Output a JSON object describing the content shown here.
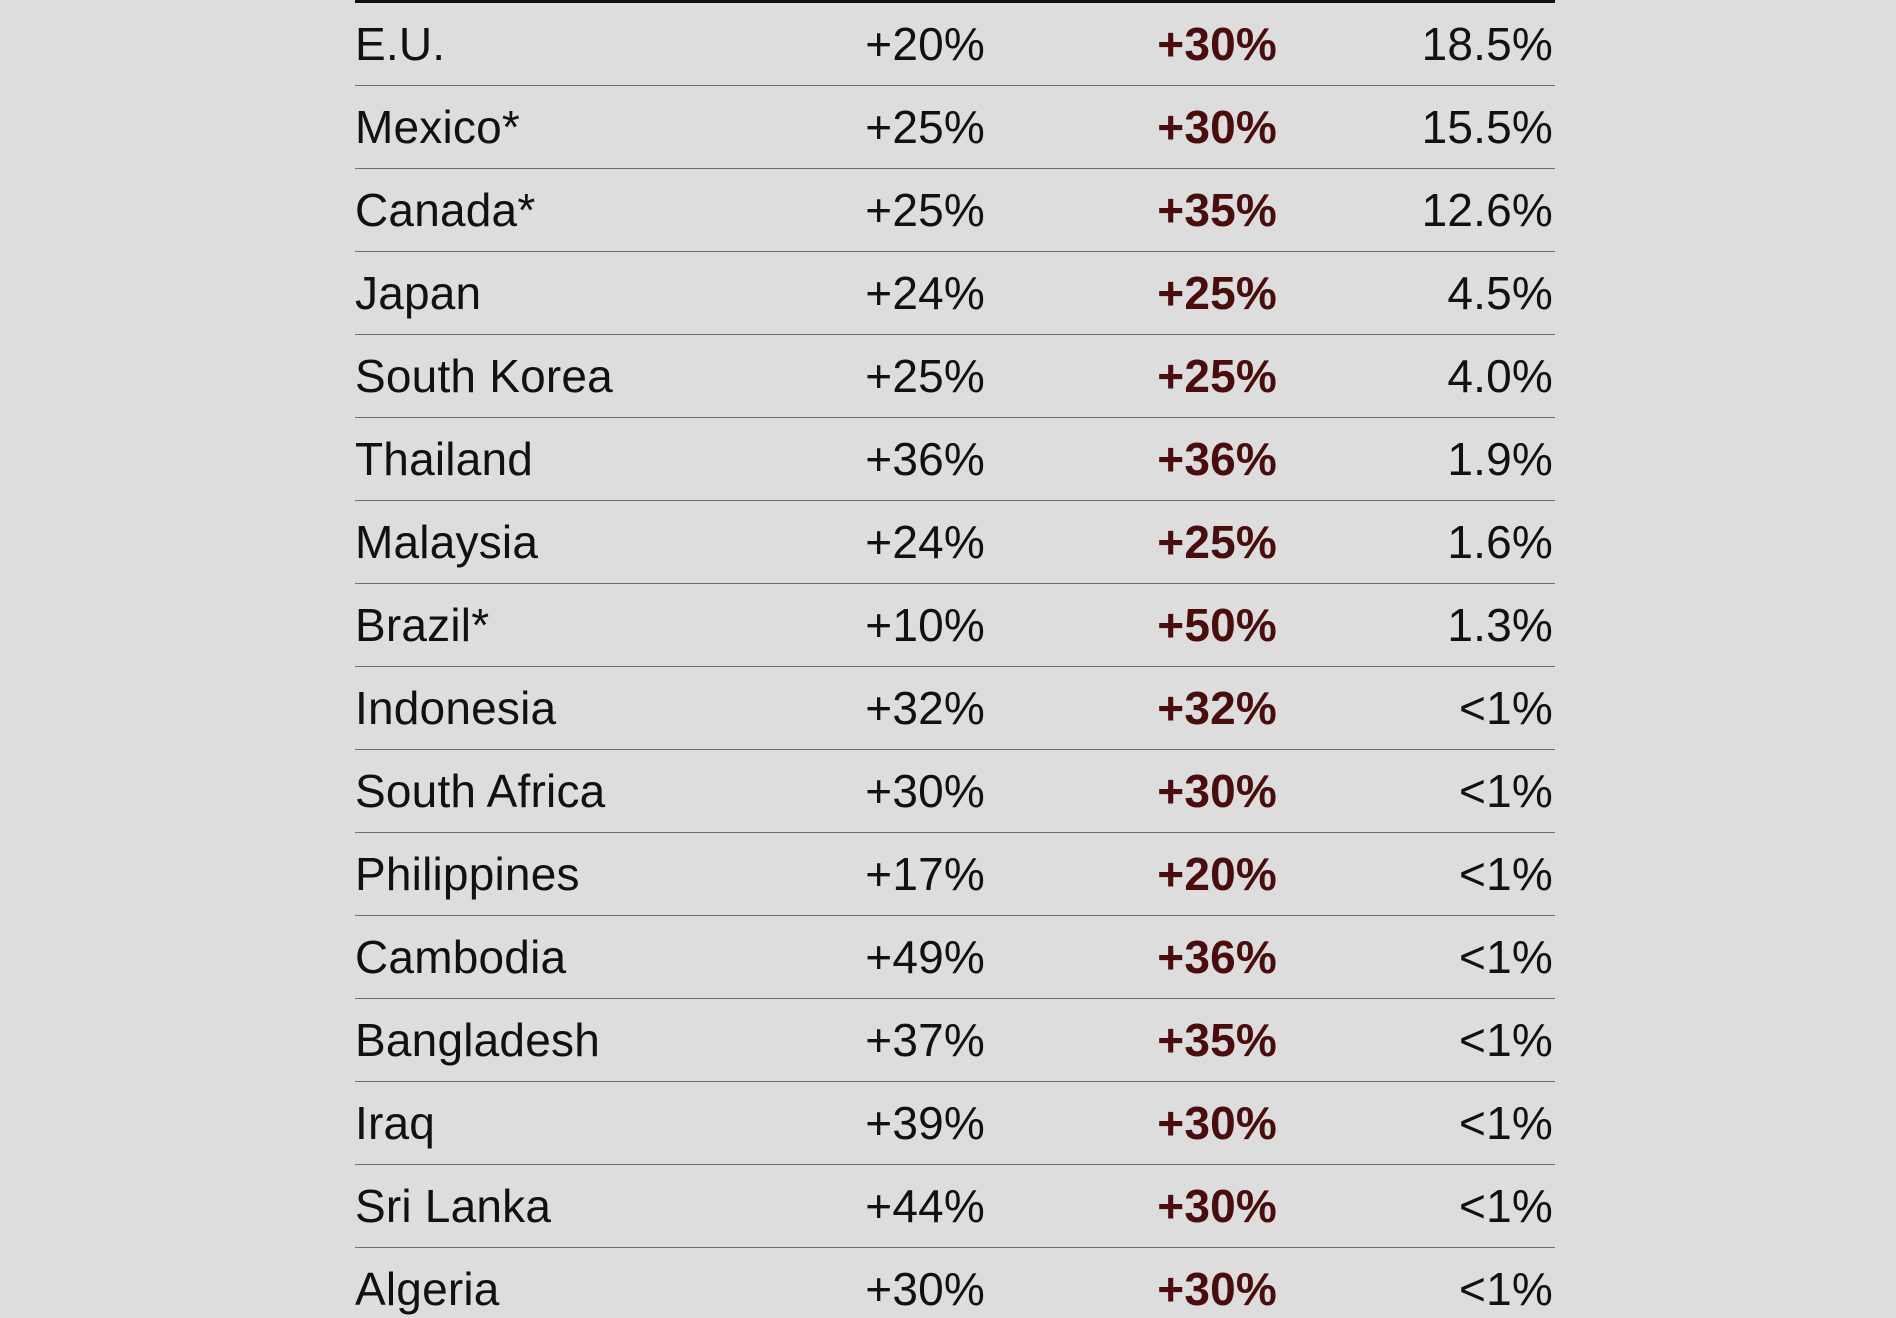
{
  "chart_data": {
    "type": "table",
    "columns": [
      "",
      "",
      "",
      ""
    ],
    "rows": [
      {
        "country": "E.U.",
        "col1": "+20%",
        "col2": "+30%",
        "col3": "18.5%"
      },
      {
        "country": "Mexico*",
        "col1": "+25%",
        "col2": "+30%",
        "col3": "15.5%"
      },
      {
        "country": "Canada*",
        "col1": "+25%",
        "col2": "+35%",
        "col3": "12.6%"
      },
      {
        "country": "Japan",
        "col1": "+24%",
        "col2": "+25%",
        "col3": "4.5%"
      },
      {
        "country": "South Korea",
        "col1": "+25%",
        "col2": "+25%",
        "col3": "4.0%"
      },
      {
        "country": "Thailand",
        "col1": "+36%",
        "col2": "+36%",
        "col3": "1.9%"
      },
      {
        "country": "Malaysia",
        "col1": "+24%",
        "col2": "+25%",
        "col3": "1.6%"
      },
      {
        "country": "Brazil*",
        "col1": "+10%",
        "col2": "+50%",
        "col3": "1.3%"
      },
      {
        "country": "Indonesia",
        "col1": "+32%",
        "col2": "+32%",
        "col3": "<1%"
      },
      {
        "country": "South Africa",
        "col1": "+30%",
        "col2": "+30%",
        "col3": "<1%"
      },
      {
        "country": "Philippines",
        "col1": "+17%",
        "col2": "+20%",
        "col3": "<1%"
      },
      {
        "country": "Cambodia",
        "col1": "+49%",
        "col2": "+36%",
        "col3": "<1%"
      },
      {
        "country": "Bangladesh",
        "col1": "+37%",
        "col2": "+35%",
        "col3": "<1%"
      },
      {
        "country": "Iraq",
        "col1": "+39%",
        "col2": "+30%",
        "col3": "<1%"
      },
      {
        "country": "Sri Lanka",
        "col1": "+44%",
        "col2": "+30%",
        "col3": "<1%"
      },
      {
        "country": "Algeria",
        "col1": "+30%",
        "col2": "+30%",
        "col3": "<1%"
      }
    ]
  },
  "colors": {
    "background": "#dddddd",
    "text": "#111111",
    "highlight": "#4a0d0d",
    "rule": "#6f6f6f"
  }
}
